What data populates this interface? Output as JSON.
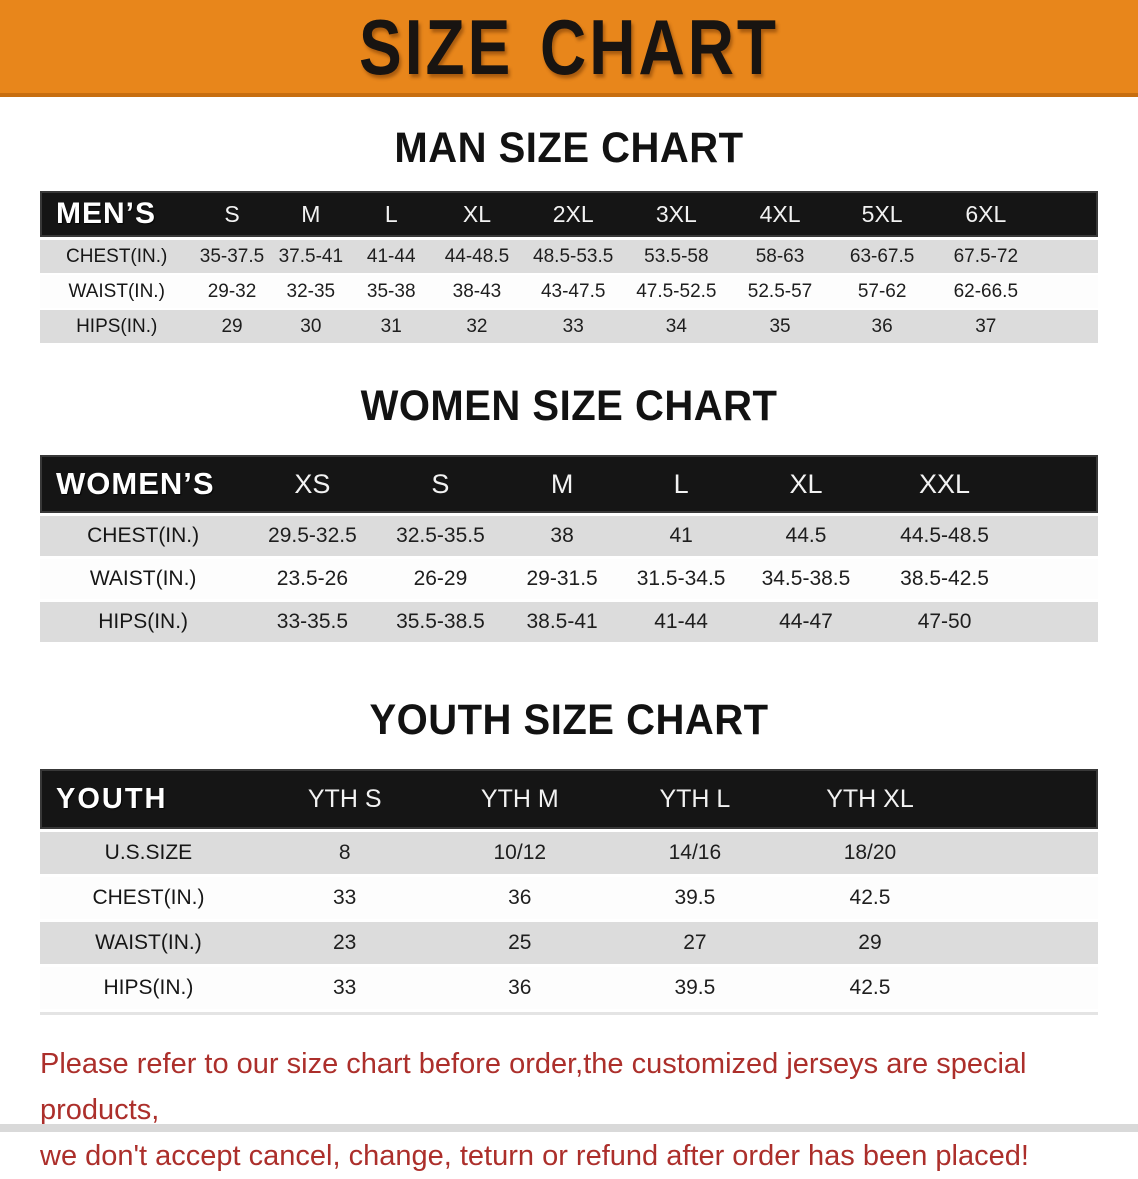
{
  "banner": {
    "title": "SIZE CHART"
  },
  "colors": {
    "banner_bg": "#E8861B",
    "banner_edge": "#C76E10",
    "table_header_bg": "#151515",
    "table_header_text": "#FFFFFF",
    "row_stripe": "#DCDCDC",
    "notice_text": "#AC2F2B"
  },
  "sections": [
    {
      "heading": "MAN SIZE CHART",
      "corner": "MEN’S",
      "columns": [
        "S",
        "M",
        "L",
        "XL",
        "2XL",
        "3XL",
        "4XL",
        "5XL",
        "6XL"
      ],
      "rows": [
        {
          "label": "CHEST(IN.)",
          "values": [
            "35-37.5",
            "37.5-41",
            "41-44",
            "44-48.5",
            "48.5-53.5",
            "53.5-58",
            "58-63",
            "63-67.5",
            "67.5-72"
          ]
        },
        {
          "label": "WAIST(IN.)",
          "values": [
            "29-32",
            "32-35",
            "35-38",
            "38-43",
            "43-47.5",
            "47.5-52.5",
            "52.5-57",
            "57-62",
            "62-66.5"
          ]
        },
        {
          "label": "HIPS(IN.)",
          "values": [
            "29",
            "30",
            "31",
            "32",
            "33",
            "34",
            "35",
            "36",
            "37"
          ]
        }
      ]
    },
    {
      "heading": "WOMEN SIZE CHART",
      "corner": "WOMEN’S",
      "columns": [
        "XS",
        "S",
        "M",
        "L",
        "XL",
        "XXL"
      ],
      "rows": [
        {
          "label": "CHEST(IN.)",
          "values": [
            "29.5-32.5",
            "32.5-35.5",
            "38",
            "41",
            "44.5",
            "44.5-48.5"
          ]
        },
        {
          "label": "WAIST(IN.)",
          "values": [
            "23.5-26",
            "26-29",
            "29-31.5",
            "31.5-34.5",
            "34.5-38.5",
            "38.5-42.5"
          ]
        },
        {
          "label": "HIPS(IN.)",
          "values": [
            "33-35.5",
            "35.5-38.5",
            "38.5-41",
            "41-44",
            "44-47",
            "47-50"
          ]
        }
      ]
    },
    {
      "heading": "YOUTH SIZE CHART",
      "corner": "YOUTH",
      "columns": [
        "YTH S",
        "YTH M",
        "YTH L",
        "YTH XL"
      ],
      "rows": [
        {
          "label": "U.S.SIZE",
          "values": [
            "8",
            "10/12",
            "14/16",
            "18/20"
          ]
        },
        {
          "label": "CHEST(IN.)",
          "values": [
            "33",
            "36",
            "39.5",
            "42.5"
          ]
        },
        {
          "label": "WAIST(IN.)",
          "values": [
            "23",
            "25",
            "27",
            "29"
          ]
        },
        {
          "label": "HIPS(IN.)",
          "values": [
            "33",
            "36",
            "39.5",
            "42.5"
          ]
        }
      ]
    }
  ],
  "footer": {
    "line1": "Please refer to our size chart before order,the customized jerseys are special products,",
    "line2": "we don't accept cancel, change, teturn or refund after order has been placed!"
  },
  "chart_data": [
    {
      "type": "table",
      "title": "MAN SIZE CHART",
      "columns": [
        "MEN’S",
        "S",
        "M",
        "L",
        "XL",
        "2XL",
        "3XL",
        "4XL",
        "5XL",
        "6XL"
      ],
      "rows": [
        [
          "CHEST(IN.)",
          "35-37.5",
          "37.5-41",
          "41-44",
          "44-48.5",
          "48.5-53.5",
          "53.5-58",
          "58-63",
          "63-67.5",
          "67.5-72"
        ],
        [
          "WAIST(IN.)",
          "29-32",
          "32-35",
          "35-38",
          "38-43",
          "43-47.5",
          "47.5-52.5",
          "52.5-57",
          "57-62",
          "62-66.5"
        ],
        [
          "HIPS(IN.)",
          "29",
          "30",
          "31",
          "32",
          "33",
          "34",
          "35",
          "36",
          "37"
        ]
      ]
    },
    {
      "type": "table",
      "title": "WOMEN SIZE CHART",
      "columns": [
        "WOMEN’S",
        "XS",
        "S",
        "M",
        "L",
        "XL",
        "XXL"
      ],
      "rows": [
        [
          "CHEST(IN.)",
          "29.5-32.5",
          "32.5-35.5",
          "38",
          "41",
          "44.5",
          "44.5-48.5"
        ],
        [
          "WAIST(IN.)",
          "23.5-26",
          "26-29",
          "29-31.5",
          "31.5-34.5",
          "34.5-38.5",
          "38.5-42.5"
        ],
        [
          "HIPS(IN.)",
          "33-35.5",
          "35.5-38.5",
          "38.5-41",
          "41-44",
          "44-47",
          "47-50"
        ]
      ]
    },
    {
      "type": "table",
      "title": "YOUTH SIZE CHART",
      "columns": [
        "YOUTH",
        "YTH S",
        "YTH M",
        "YTH L",
        "YTH XL"
      ],
      "rows": [
        [
          "U.S.SIZE",
          "8",
          "10/12",
          "14/16",
          "18/20"
        ],
        [
          "CHEST(IN.)",
          "33",
          "36",
          "39.5",
          "42.5"
        ],
        [
          "WAIST(IN.)",
          "23",
          "25",
          "27",
          "29"
        ],
        [
          "HIPS(IN.)",
          "33",
          "36",
          "39.5",
          "42.5"
        ]
      ]
    }
  ]
}
